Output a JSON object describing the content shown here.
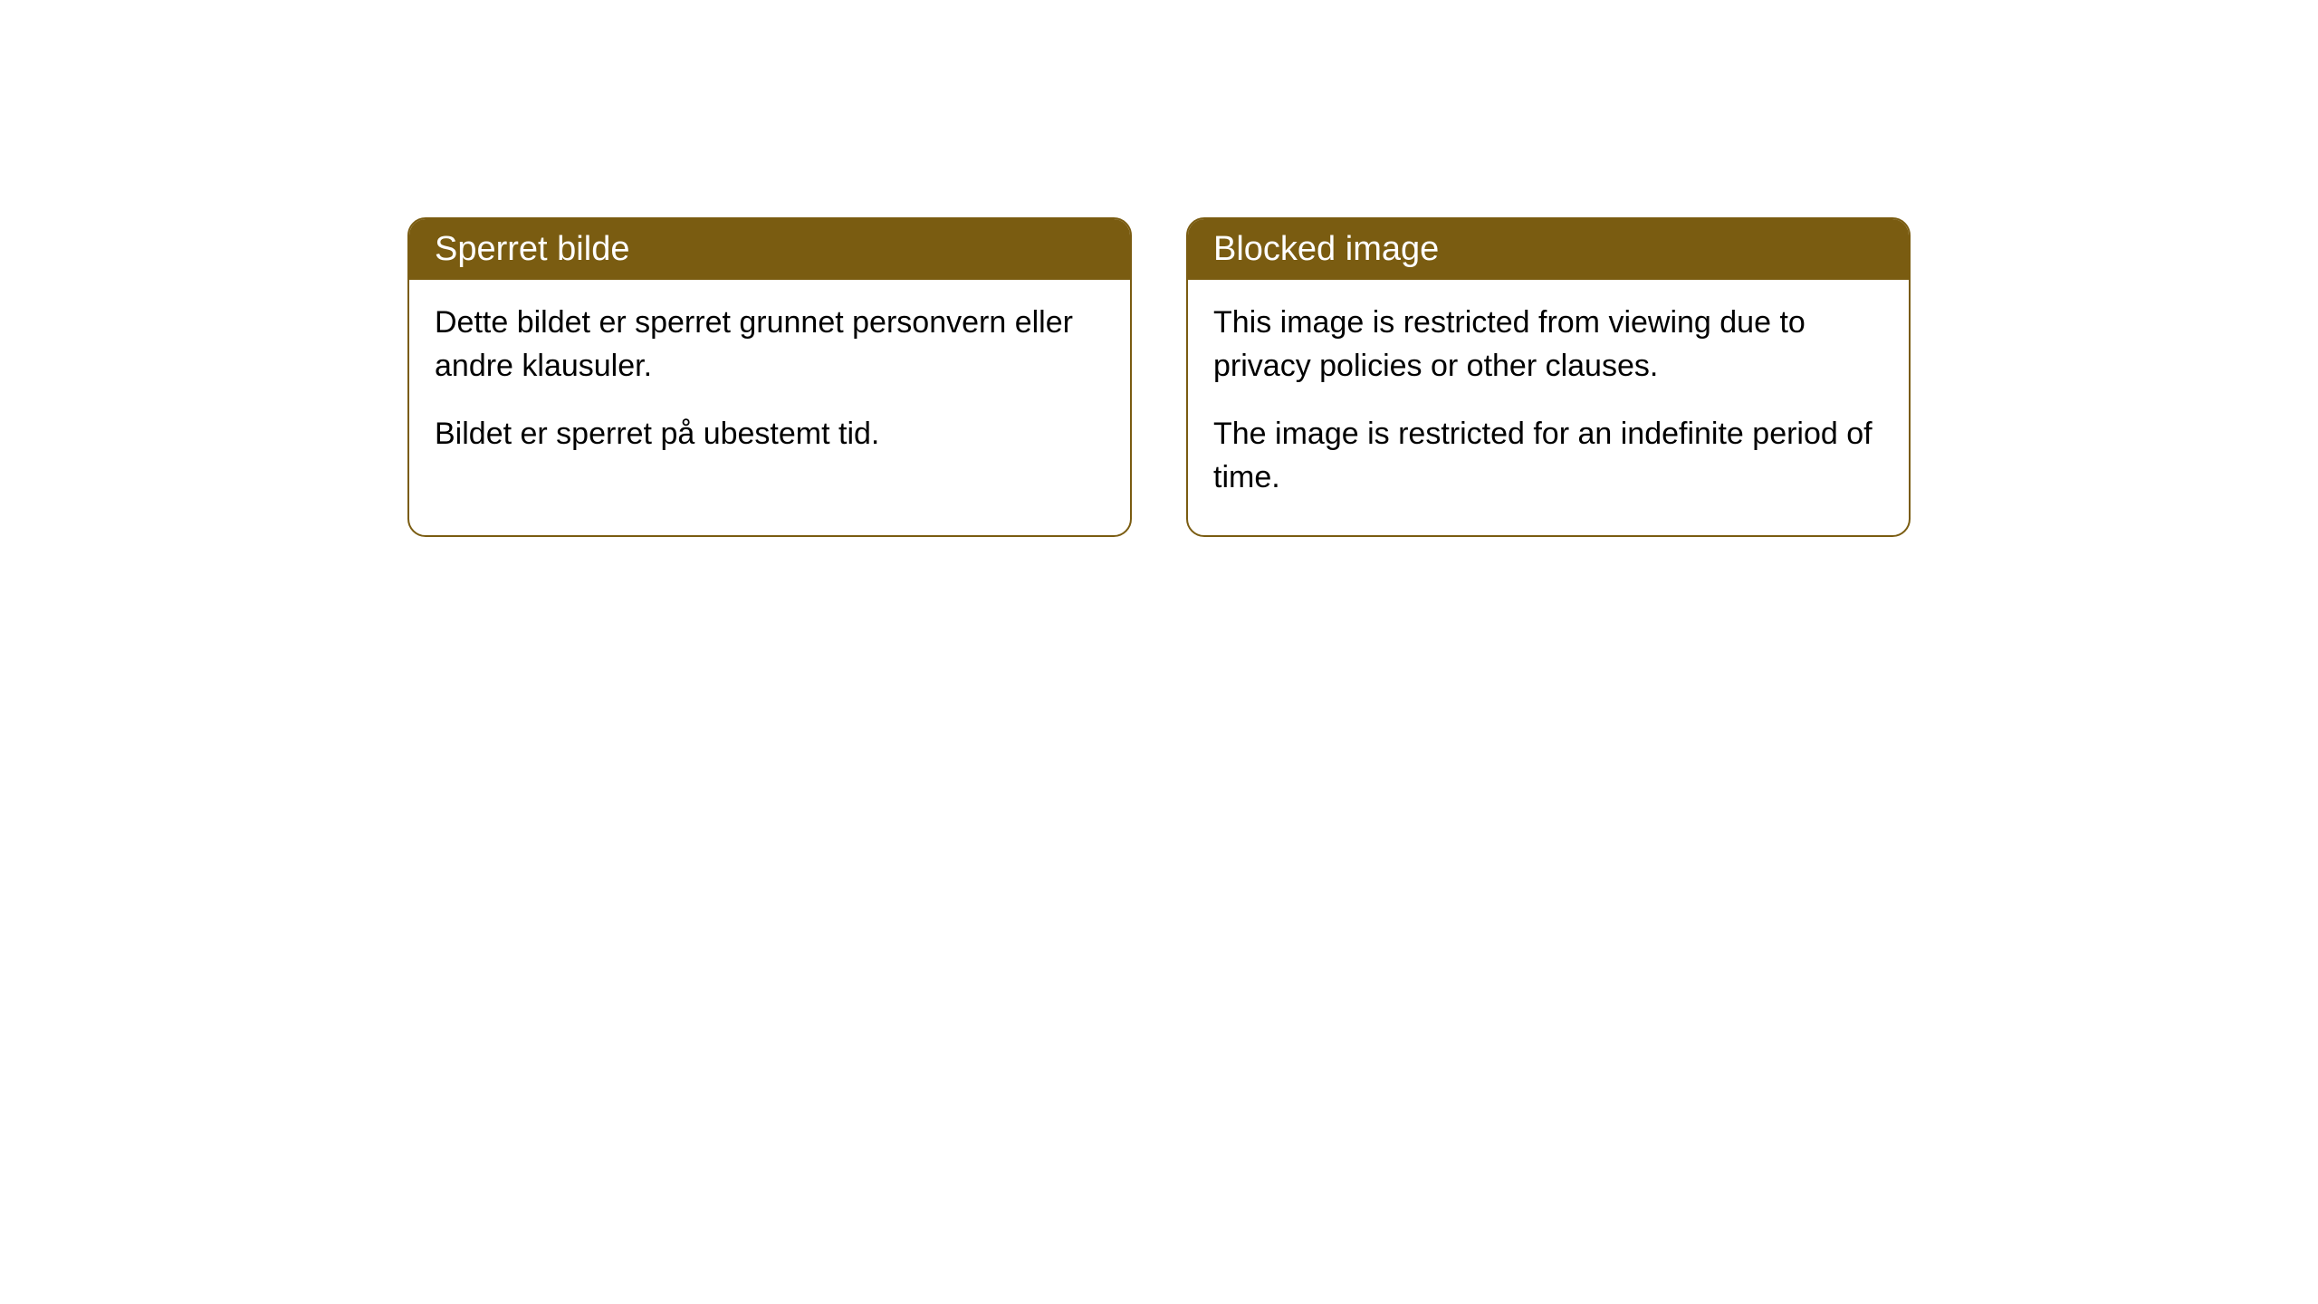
{
  "cards": [
    {
      "title": "Sperret bilde",
      "paragraphs": [
        "Dette bildet er sperret grunnet personvern eller andre klausuler.",
        "Bildet er sperret på ubestemt tid."
      ]
    },
    {
      "title": "Blocked image",
      "paragraphs": [
        "This image is restricted from viewing due to privacy policies or other clauses.",
        "The image is restricted for an indefinite period of time."
      ]
    }
  ],
  "styling": {
    "header_bg_color": "#7a5c11",
    "header_text_color": "#ffffff",
    "border_color": "#7a5c11",
    "border_radius": 20,
    "title_fontsize": 38,
    "body_fontsize": 34,
    "body_text_color": "#000000",
    "card_bg_color": "#ffffff",
    "page_bg_color": "#ffffff"
  }
}
